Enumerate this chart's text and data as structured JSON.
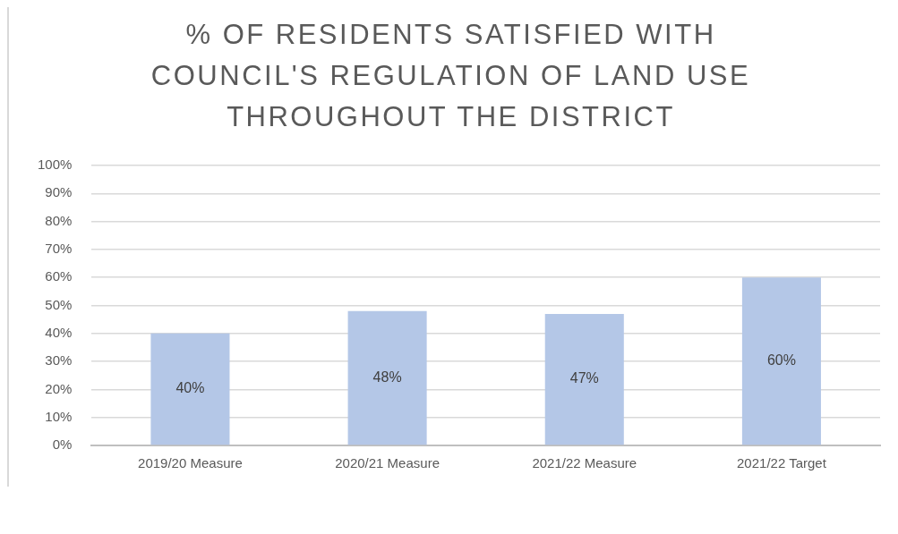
{
  "chart_data": {
    "type": "bar",
    "title": "% OF RESIDENTS SATISFIED WITH COUNCIL'S REGULATION OF LAND USE THROUGHOUT THE DISTRICT",
    "categories": [
      "2019/20 Measure",
      "2020/21 Measure",
      "2021/22 Measure",
      "2021/22 Target"
    ],
    "values": [
      40,
      48,
      47,
      60
    ],
    "value_labels": [
      "40%",
      "48%",
      "47%",
      "60%"
    ],
    "color": "#b4c7e7",
    "ylim": [
      0,
      100
    ],
    "yticks": [
      {
        "value": 0,
        "label": "0%"
      },
      {
        "value": 10,
        "label": "10%"
      },
      {
        "value": 20,
        "label": "20%"
      },
      {
        "value": 30,
        "label": "30%"
      },
      {
        "value": 40,
        "label": "40%"
      },
      {
        "value": 50,
        "label": "50%"
      },
      {
        "value": 60,
        "label": "60%"
      },
      {
        "value": 70,
        "label": "70%"
      },
      {
        "value": 80,
        "label": "80%"
      },
      {
        "value": 90,
        "label": "90%"
      },
      {
        "value": 100,
        "label": "100%"
      }
    ],
    "grid": "y",
    "legend": false
  }
}
